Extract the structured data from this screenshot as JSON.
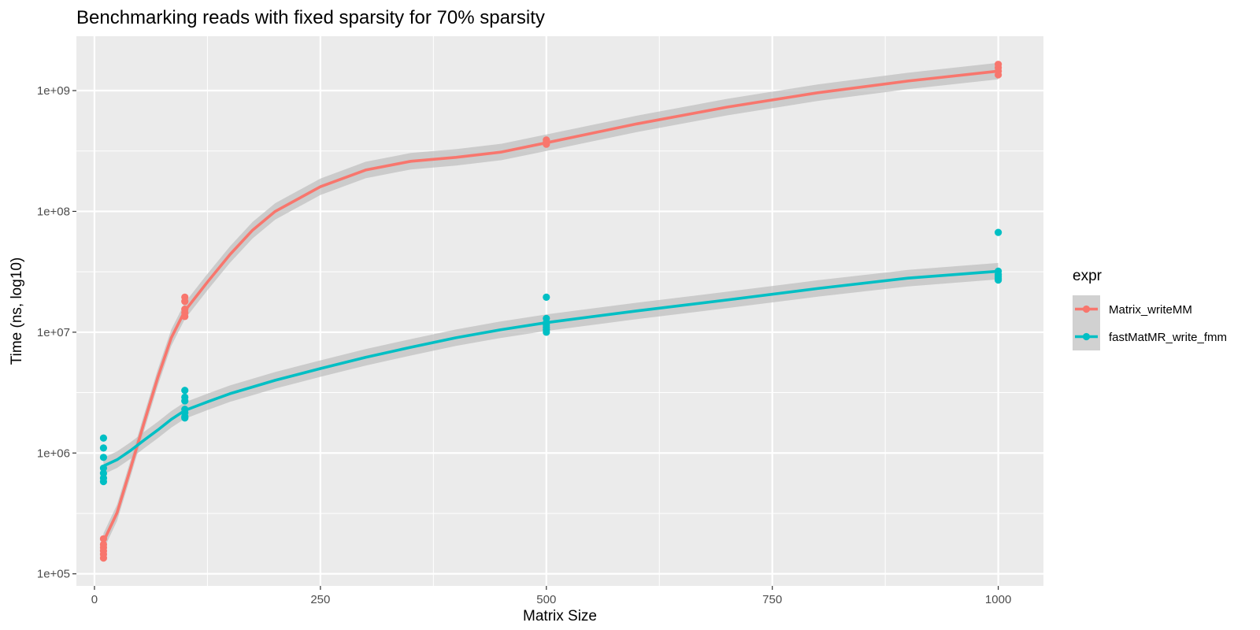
{
  "chart_data": {
    "type": "scatter",
    "title": "Benchmarking reads with fixed sparsity for 70% sparsity",
    "xlabel": "Matrix Size",
    "ylabel": "Time (ns, log10)",
    "xlim": [
      -20,
      1050
    ],
    "ylim_log10": [
      4.9,
      9.45
    ],
    "y_scale": "log10",
    "x_ticks": [
      0,
      250,
      500,
      750,
      1000
    ],
    "y_ticks": [
      100000,
      1000000,
      10000000,
      100000000,
      1000000000
    ],
    "x_tick_labels": [
      "0",
      "250",
      "500",
      "750",
      "1000"
    ],
    "y_tick_labels": [
      "1e+05",
      "1e+06",
      "1e+07",
      "1e+08",
      "1e+09"
    ],
    "grid": true,
    "legend": {
      "title": "expr",
      "position": "right"
    },
    "series": [
      {
        "name": "Matrix_writeMM",
        "color": "#F8766D",
        "points": [
          {
            "x": 10,
            "y": 195000
          },
          {
            "x": 10,
            "y": 175000
          },
          {
            "x": 10,
            "y": 165000
          },
          {
            "x": 10,
            "y": 155000
          },
          {
            "x": 10,
            "y": 145000
          },
          {
            "x": 10,
            "y": 135000
          },
          {
            "x": 100,
            "y": 19500000
          },
          {
            "x": 100,
            "y": 18000000
          },
          {
            "x": 100,
            "y": 15500000
          },
          {
            "x": 100,
            "y": 14500000
          },
          {
            "x": 100,
            "y": 13500000
          },
          {
            "x": 500,
            "y": 390000000
          },
          {
            "x": 500,
            "y": 375000000
          },
          {
            "x": 500,
            "y": 360000000
          },
          {
            "x": 1000,
            "y": 1650000000
          },
          {
            "x": 1000,
            "y": 1550000000
          },
          {
            "x": 1000,
            "y": 1450000000
          },
          {
            "x": 1000,
            "y": 1350000000
          }
        ],
        "smooth": [
          {
            "x": 10,
            "y": 185000
          },
          {
            "x": 25,
            "y": 320000
          },
          {
            "x": 40,
            "y": 750000
          },
          {
            "x": 55,
            "y": 1800000
          },
          {
            "x": 70,
            "y": 4200000
          },
          {
            "x": 85,
            "y": 9000000
          },
          {
            "x": 100,
            "y": 15000000
          },
          {
            "x": 125,
            "y": 26000000
          },
          {
            "x": 150,
            "y": 44000000
          },
          {
            "x": 175,
            "y": 70000000
          },
          {
            "x": 200,
            "y": 100000000
          },
          {
            "x": 250,
            "y": 160000000
          },
          {
            "x": 300,
            "y": 220000000
          },
          {
            "x": 350,
            "y": 260000000
          },
          {
            "x": 400,
            "y": 280000000
          },
          {
            "x": 450,
            "y": 310000000
          },
          {
            "x": 500,
            "y": 370000000
          },
          {
            "x": 600,
            "y": 530000000
          },
          {
            "x": 700,
            "y": 730000000
          },
          {
            "x": 800,
            "y": 960000000
          },
          {
            "x": 900,
            "y": 1200000000
          },
          {
            "x": 1000,
            "y": 1450000000
          }
        ]
      },
      {
        "name": "fastMatMR_write_fmm",
        "color": "#00BFC4",
        "points": [
          {
            "x": 10,
            "y": 1330000
          },
          {
            "x": 10,
            "y": 1100000
          },
          {
            "x": 10,
            "y": 920000
          },
          {
            "x": 10,
            "y": 750000
          },
          {
            "x": 10,
            "y": 680000
          },
          {
            "x": 10,
            "y": 620000
          },
          {
            "x": 10,
            "y": 580000
          },
          {
            "x": 100,
            "y": 3300000
          },
          {
            "x": 100,
            "y": 2900000
          },
          {
            "x": 100,
            "y": 2700000
          },
          {
            "x": 100,
            "y": 2300000
          },
          {
            "x": 100,
            "y": 2150000
          },
          {
            "x": 100,
            "y": 2000000
          },
          {
            "x": 100,
            "y": 1950000
          },
          {
            "x": 500,
            "y": 19500000
          },
          {
            "x": 500,
            "y": 13000000
          },
          {
            "x": 500,
            "y": 12000000
          },
          {
            "x": 500,
            "y": 11500000
          },
          {
            "x": 500,
            "y": 11000000
          },
          {
            "x": 500,
            "y": 10500000
          },
          {
            "x": 500,
            "y": 10000000
          },
          {
            "x": 1000,
            "y": 67000000
          },
          {
            "x": 1000,
            "y": 32000000
          },
          {
            "x": 1000,
            "y": 30000000
          },
          {
            "x": 1000,
            "y": 29000000
          },
          {
            "x": 1000,
            "y": 28000000
          },
          {
            "x": 1000,
            "y": 27000000
          }
        ],
        "smooth": [
          {
            "x": 10,
            "y": 780000
          },
          {
            "x": 25,
            "y": 880000
          },
          {
            "x": 40,
            "y": 1050000
          },
          {
            "x": 55,
            "y": 1280000
          },
          {
            "x": 70,
            "y": 1550000
          },
          {
            "x": 85,
            "y": 1900000
          },
          {
            "x": 100,
            "y": 2250000
          },
          {
            "x": 125,
            "y": 2650000
          },
          {
            "x": 150,
            "y": 3100000
          },
          {
            "x": 200,
            "y": 4000000
          },
          {
            "x": 250,
            "y": 5000000
          },
          {
            "x": 300,
            "y": 6200000
          },
          {
            "x": 350,
            "y": 7500000
          },
          {
            "x": 400,
            "y": 9000000
          },
          {
            "x": 450,
            "y": 10500000
          },
          {
            "x": 500,
            "y": 12000000
          },
          {
            "x": 600,
            "y": 15000000
          },
          {
            "x": 700,
            "y": 18500000
          },
          {
            "x": 800,
            "y": 23000000
          },
          {
            "x": 900,
            "y": 28000000
          },
          {
            "x": 1000,
            "y": 32000000
          }
        ]
      }
    ]
  }
}
